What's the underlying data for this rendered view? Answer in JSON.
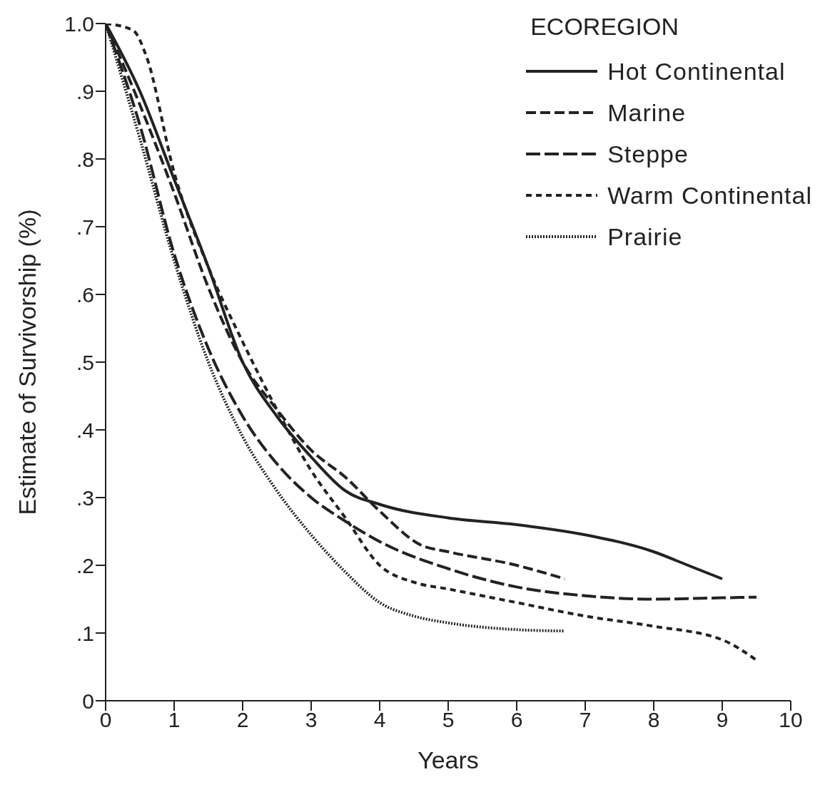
{
  "chart_data": {
    "type": "line",
    "xlabel": "Years",
    "ylabel": "Estimate of Survivorship (%)",
    "legend_title": "ECOREGION",
    "legend": "top right",
    "marker": "none",
    "xlim": [
      0,
      10
    ],
    "xticks": [
      0,
      1,
      2,
      3,
      4,
      5,
      6,
      7,
      8,
      9,
      10
    ],
    "ylim": [
      0,
      1
    ],
    "yticks": [
      {
        "value": 0,
        "label": "0"
      },
      {
        "value": 0.1,
        "label": ".1"
      },
      {
        "value": 0.2,
        "label": ".2"
      },
      {
        "value": 0.3,
        "label": ".3"
      },
      {
        "value": 0.4,
        "label": ".4"
      },
      {
        "value": 0.5,
        "label": ".5"
      },
      {
        "value": 0.6,
        "label": ".6"
      },
      {
        "value": 0.7,
        "label": ".7"
      },
      {
        "value": 0.8,
        "label": ".8"
      },
      {
        "value": 0.9,
        "label": ".9"
      },
      {
        "value": 1,
        "label": "1.0"
      }
    ],
    "series": [
      {
        "name": "Hot Continental",
        "color": "#222222",
        "line_style": "solid",
        "x": [
          0,
          0.5,
          1,
          1.5,
          2,
          2.5,
          3,
          3.5,
          4,
          5,
          6,
          7,
          8,
          8.5,
          9
        ],
        "values": [
          1,
          0.9,
          0.77,
          0.64,
          0.5,
          0.42,
          0.36,
          0.31,
          0.29,
          0.27,
          0.26,
          0.245,
          0.22,
          0.2,
          0.18
        ]
      },
      {
        "name": "Marine",
        "color": "#222222",
        "line_style": "dashed",
        "x": [
          0,
          0.5,
          1,
          1.5,
          2,
          2.5,
          3,
          3.5,
          4,
          4.6,
          5,
          6,
          6.7
        ],
        "values": [
          1,
          0.88,
          0.75,
          0.61,
          0.5,
          0.43,
          0.37,
          0.33,
          0.28,
          0.23,
          0.22,
          0.2,
          0.18
        ]
      },
      {
        "name": "Steppe",
        "color": "#222222",
        "line_style": "dashed",
        "x": [
          0,
          0.5,
          1,
          1.5,
          2,
          2.5,
          3,
          3.5,
          4,
          5,
          6,
          7,
          8,
          9,
          9.5
        ],
        "values": [
          1,
          0.85,
          0.66,
          0.52,
          0.42,
          0.35,
          0.3,
          0.265,
          0.235,
          0.195,
          0.168,
          0.155,
          0.15,
          0.152,
          0.153
        ]
      },
      {
        "name": "Warm Continental",
        "color": "#222222",
        "line_style": "dashed",
        "x": [
          0,
          0.4,
          0.6,
          1,
          1.5,
          2,
          2.5,
          3,
          3.5,
          4,
          4.5,
          5,
          6,
          7,
          8,
          9,
          9.5
        ],
        "values": [
          1,
          0.99,
          0.95,
          0.78,
          0.64,
          0.53,
          0.43,
          0.34,
          0.27,
          0.2,
          0.175,
          0.165,
          0.145,
          0.125,
          0.11,
          0.09,
          0.06
        ]
      },
      {
        "name": "Prairie",
        "color": "#222222",
        "line_style": "dotted",
        "x": [
          0,
          0.5,
          1,
          1.5,
          2,
          2.5,
          3,
          3.5,
          4,
          4.5,
          5,
          6,
          6.7
        ],
        "values": [
          1,
          0.83,
          0.65,
          0.5,
          0.39,
          0.31,
          0.245,
          0.19,
          0.145,
          0.125,
          0.115,
          0.105,
          0.103
        ]
      }
    ]
  }
}
